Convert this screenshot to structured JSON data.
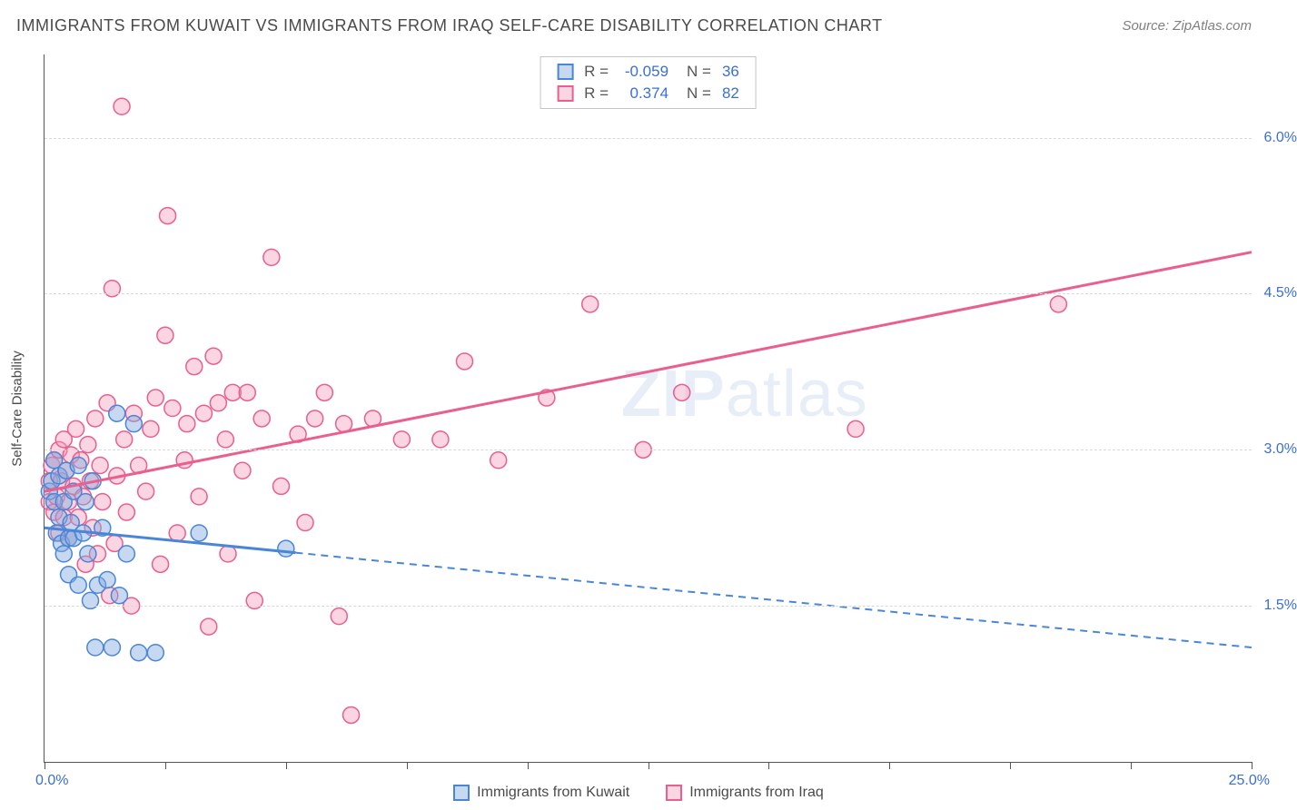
{
  "title": "IMMIGRANTS FROM KUWAIT VS IMMIGRANTS FROM IRAQ SELF-CARE DISABILITY CORRELATION CHART",
  "source": "Source: ZipAtlas.com",
  "watermark_a": "ZIP",
  "watermark_b": "atlas",
  "chart": {
    "type": "scatter",
    "ylabel": "Self-Care Disability",
    "xlim": [
      0,
      25
    ],
    "ylim": [
      0,
      6.8
    ],
    "x_start_label": "0.0%",
    "x_end_label": "25.0%",
    "y_ticks": [
      1.5,
      3.0,
      4.5,
      6.0
    ],
    "y_tick_labels": [
      "1.5%",
      "3.0%",
      "4.5%",
      "6.0%"
    ],
    "x_tick_positions": [
      0,
      2.5,
      5,
      7.5,
      10,
      12.5,
      15,
      17.5,
      20,
      22.5,
      25
    ],
    "grid_color": "#d8d8d8",
    "background_color": "#ffffff",
    "marker_radius": 9,
    "marker_stroke_width": 1.5,
    "trend_line_width": 3,
    "series": [
      {
        "id": "kuwait",
        "label": "Immigrants from Kuwait",
        "color_stroke": "#4a86d8",
        "color_fill": "rgba(130,170,225,0.45)",
        "r": "-0.059",
        "n": "36",
        "trend": {
          "x1": 0,
          "y1": 2.25,
          "x2": 25,
          "y2": 1.1,
          "solid_until_x": 5.2
        },
        "points": [
          [
            0.1,
            2.6
          ],
          [
            0.15,
            2.7
          ],
          [
            0.2,
            2.5
          ],
          [
            0.2,
            2.9
          ],
          [
            0.25,
            2.2
          ],
          [
            0.3,
            2.35
          ],
          [
            0.3,
            2.75
          ],
          [
            0.35,
            2.1
          ],
          [
            0.4,
            2.5
          ],
          [
            0.4,
            2.0
          ],
          [
            0.45,
            2.8
          ],
          [
            0.5,
            2.15
          ],
          [
            0.5,
            1.8
          ],
          [
            0.55,
            2.3
          ],
          [
            0.6,
            2.6
          ],
          [
            0.6,
            2.15
          ],
          [
            0.7,
            2.85
          ],
          [
            0.7,
            1.7
          ],
          [
            0.8,
            2.2
          ],
          [
            0.85,
            2.5
          ],
          [
            0.9,
            2.0
          ],
          [
            0.95,
            1.55
          ],
          [
            1.0,
            2.7
          ],
          [
            1.05,
            1.1
          ],
          [
            1.1,
            1.7
          ],
          [
            1.2,
            2.25
          ],
          [
            1.3,
            1.75
          ],
          [
            1.4,
            1.1
          ],
          [
            1.5,
            3.35
          ],
          [
            1.55,
            1.6
          ],
          [
            1.7,
            2.0
          ],
          [
            1.85,
            3.25
          ],
          [
            1.95,
            1.05
          ],
          [
            2.3,
            1.05
          ],
          [
            3.2,
            2.2
          ],
          [
            5.0,
            2.05
          ]
        ]
      },
      {
        "id": "iraq",
        "label": "Immigrants from Iraq",
        "color_stroke": "#e95f8f",
        "color_fill": "rgba(245,150,180,0.40)",
        "r": "0.374",
        "n": "82",
        "trend": {
          "x1": 0,
          "y1": 2.6,
          "x2": 25,
          "y2": 4.9,
          "solid_until_x": 25
        },
        "points": [
          [
            0.1,
            2.5
          ],
          [
            0.1,
            2.7
          ],
          [
            0.15,
            2.85
          ],
          [
            0.2,
            2.4
          ],
          [
            0.2,
            2.9
          ],
          [
            0.25,
            2.55
          ],
          [
            0.3,
            2.2
          ],
          [
            0.3,
            3.0
          ],
          [
            0.35,
            2.7
          ],
          [
            0.4,
            2.35
          ],
          [
            0.4,
            3.1
          ],
          [
            0.45,
            2.8
          ],
          [
            0.5,
            2.5
          ],
          [
            0.5,
            2.15
          ],
          [
            0.55,
            2.95
          ],
          [
            0.6,
            2.65
          ],
          [
            0.65,
            3.2
          ],
          [
            0.7,
            2.35
          ],
          [
            0.75,
            2.9
          ],
          [
            0.8,
            2.55
          ],
          [
            0.85,
            1.9
          ],
          [
            0.9,
            3.05
          ],
          [
            0.95,
            2.7
          ],
          [
            1.0,
            2.25
          ],
          [
            1.05,
            3.3
          ],
          [
            1.1,
            2.0
          ],
          [
            1.15,
            2.85
          ],
          [
            1.2,
            2.5
          ],
          [
            1.3,
            3.45
          ],
          [
            1.35,
            1.6
          ],
          [
            1.4,
            4.55
          ],
          [
            1.45,
            2.1
          ],
          [
            1.5,
            2.75
          ],
          [
            1.6,
            6.3
          ],
          [
            1.65,
            3.1
          ],
          [
            1.7,
            2.4
          ],
          [
            1.8,
            1.5
          ],
          [
            1.85,
            3.35
          ],
          [
            1.95,
            2.85
          ],
          [
            2.1,
            2.6
          ],
          [
            2.2,
            3.2
          ],
          [
            2.3,
            3.5
          ],
          [
            2.4,
            1.9
          ],
          [
            2.5,
            4.1
          ],
          [
            2.55,
            5.25
          ],
          [
            2.65,
            3.4
          ],
          [
            2.75,
            2.2
          ],
          [
            2.9,
            2.9
          ],
          [
            2.95,
            3.25
          ],
          [
            3.1,
            3.8
          ],
          [
            3.2,
            2.55
          ],
          [
            3.3,
            3.35
          ],
          [
            3.4,
            1.3
          ],
          [
            3.5,
            3.9
          ],
          [
            3.6,
            3.45
          ],
          [
            3.75,
            3.1
          ],
          [
            3.8,
            2.0
          ],
          [
            3.9,
            3.55
          ],
          [
            4.1,
            2.8
          ],
          [
            4.2,
            3.55
          ],
          [
            4.35,
            1.55
          ],
          [
            4.5,
            3.3
          ],
          [
            4.7,
            4.85
          ],
          [
            4.9,
            2.65
          ],
          [
            5.25,
            3.15
          ],
          [
            5.4,
            2.3
          ],
          [
            5.6,
            3.3
          ],
          [
            5.8,
            3.55
          ],
          [
            6.1,
            1.4
          ],
          [
            6.2,
            3.25
          ],
          [
            6.35,
            0.45
          ],
          [
            6.8,
            3.3
          ],
          [
            7.4,
            3.1
          ],
          [
            8.2,
            3.1
          ],
          [
            8.7,
            3.85
          ],
          [
            9.4,
            2.9
          ],
          [
            10.4,
            3.5
          ],
          [
            11.3,
            4.4
          ],
          [
            12.4,
            3.0
          ],
          [
            13.2,
            3.55
          ],
          [
            16.8,
            3.2
          ],
          [
            21.0,
            4.4
          ]
        ]
      }
    ]
  },
  "legend": {
    "kuwait_label": "Immigrants from Kuwait",
    "iraq_label": "Immigrants from Iraq"
  },
  "stats_labels": {
    "r": "R =",
    "n": "N ="
  }
}
